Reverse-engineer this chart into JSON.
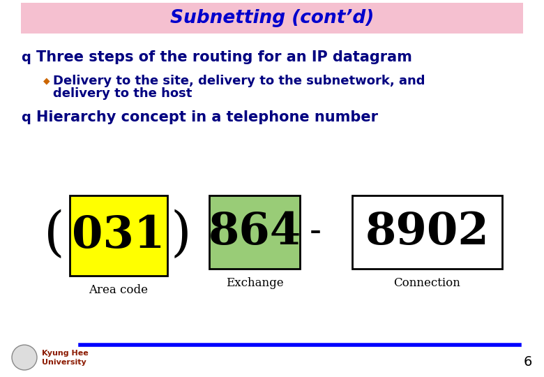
{
  "title": "Subnetting (cont’d)",
  "title_color": "#0000cc",
  "title_bg_color": "#f5c0d0",
  "bg_color": "#ffffff",
  "bullet1": "Three steps of the routing for an IP datagram",
  "sub_bullet_line1": "Delivery to the site, delivery to the subnetwork, and",
  "sub_bullet_line2": "delivery to the host",
  "bullet2": "Hierarchy concept in a telephone number",
  "box1_text": "031",
  "box1_bg": "#ffff00",
  "box1_border": "#000000",
  "box2_text": "864",
  "box2_bg": "#99cc77",
  "box2_border": "#000000",
  "box3_text": "8902",
  "box3_bg": "#ffffff",
  "box3_border": "#000000",
  "label1": "Area code",
  "label2": "Exchange",
  "label3": "Connection",
  "paren_left": "(",
  "paren_right": ")",
  "dash": "-",
  "footer_text1": "Kyung Hee",
  "footer_text2": "University",
  "footer_line_color": "#0000ff",
  "page_number": "6",
  "bullet_color": "#000080",
  "sub_bullet_color": "#cc6600",
  "label_color": "#000000",
  "text_color": "#000000"
}
